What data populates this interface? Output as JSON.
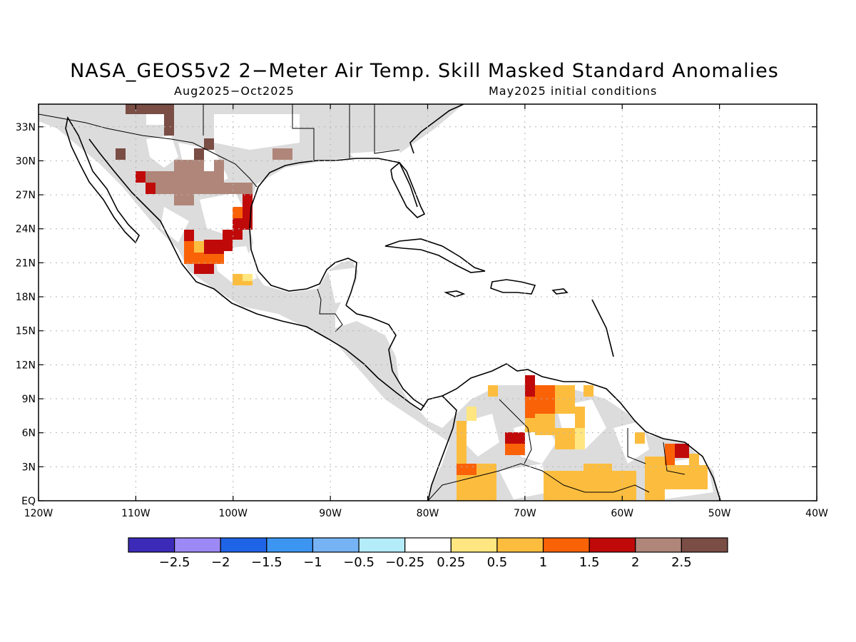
{
  "title": "NASA_GEOS5v2 2−Meter Air Temp. Skill Masked Standard Anomalies",
  "period": "Aug2025−Oct2025",
  "init": "May2025 initial conditions",
  "map": {
    "lon_range": [
      -120,
      -40
    ],
    "lat_range": [
      0,
      35
    ],
    "lon_ticks": [
      -120,
      -110,
      -100,
      -90,
      -80,
      -70,
      -60,
      -50,
      -40
    ],
    "lon_labels": [
      "120W",
      "110W",
      "100W",
      "90W",
      "80W",
      "70W",
      "60W",
      "50W",
      "40W"
    ],
    "lat_ticks": [
      33,
      30,
      27,
      24,
      21,
      18,
      15,
      12,
      9,
      6,
      3,
      0
    ],
    "lat_labels": [
      "33N",
      "30N",
      "27N",
      "24N",
      "21N",
      "18N",
      "15N",
      "12N",
      "9N",
      "6N",
      "3N",
      "EQ"
    ]
  },
  "colorbar": {
    "colors": [
      "#3b2bb8",
      "#9d89f5",
      "#1f64e6",
      "#3d95f2",
      "#76b3f5",
      "#b4ecfa",
      "#ffffff",
      "#ffe680",
      "#fcbd3f",
      "#fa6208",
      "#c00a0a",
      "#b0867a",
      "#7a4d45"
    ],
    "labels": [
      "−2.5",
      "−2",
      "−1.5",
      "−1",
      "−0.5",
      "−0.25",
      "0.25",
      "0.5",
      "1",
      "1.5",
      "2",
      "2.5"
    ]
  },
  "colors": {
    "masked_land": "#dcdcdc",
    "coast": "#000000",
    "grid": "#b4b4b4"
  }
}
